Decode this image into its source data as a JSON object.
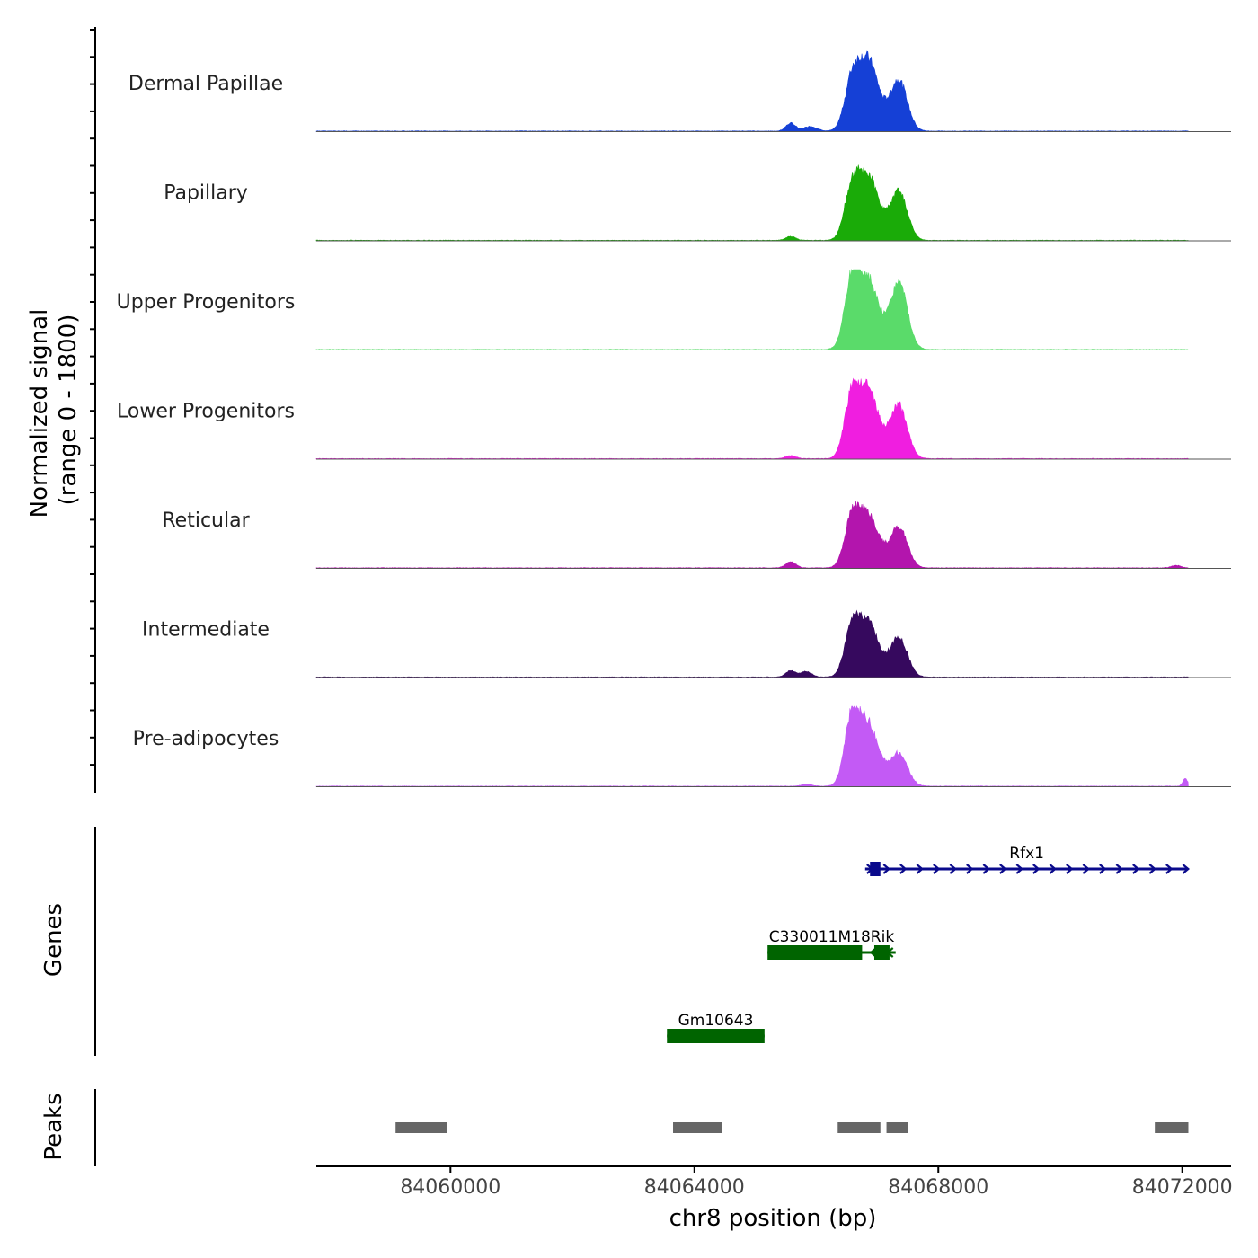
{
  "chart_data": {
    "type": "area",
    "title": "",
    "ylabel_line1": "Normalized signal",
    "ylabel_line2": "(range 0 - 1800)",
    "ylim": [
      0,
      1800
    ],
    "xlabel": "chr8 position (bp)",
    "xlim": [
      84057800,
      84072800
    ],
    "xticks": [
      84060000,
      84064000,
      84068000,
      84072000
    ],
    "xtick_labels": [
      "84060000",
      "84064000",
      "84068000",
      "84072000"
    ],
    "genes_label": "Genes",
    "peaks_label": "Peaks",
    "series": [
      {
        "name": "Dermal Papillae",
        "color": "#1540d6",
        "peaks": [
          {
            "c": 84066580,
            "w": 120,
            "h": 0.55
          },
          {
            "c": 84066850,
            "w": 170,
            "h": 0.9
          },
          {
            "c": 84067350,
            "w": 140,
            "h": 0.65
          },
          {
            "c": 84065580,
            "w": 80,
            "h": 0.1
          },
          {
            "c": 84065900,
            "w": 110,
            "h": 0.06
          }
        ]
      },
      {
        "name": "Papillary",
        "color": "#1aab08",
        "peaks": [
          {
            "c": 84066580,
            "w": 120,
            "h": 0.58
          },
          {
            "c": 84066850,
            "w": 170,
            "h": 0.82
          },
          {
            "c": 84067350,
            "w": 140,
            "h": 0.62
          },
          {
            "c": 84065580,
            "w": 80,
            "h": 0.05
          }
        ]
      },
      {
        "name": "Upper Progenitors",
        "color": "#5adb6a",
        "peaks": [
          {
            "c": 84066580,
            "w": 120,
            "h": 0.78
          },
          {
            "c": 84066850,
            "w": 170,
            "h": 0.88
          },
          {
            "c": 84067350,
            "w": 140,
            "h": 0.85
          }
        ]
      },
      {
        "name": "Lower Progenitors",
        "color": "#f01ee0",
        "peaks": [
          {
            "c": 84066580,
            "w": 120,
            "h": 0.7
          },
          {
            "c": 84066850,
            "w": 170,
            "h": 0.86
          },
          {
            "c": 84067350,
            "w": 140,
            "h": 0.68
          },
          {
            "c": 84065580,
            "w": 80,
            "h": 0.04
          }
        ]
      },
      {
        "name": "Reticular",
        "color": "#b315ad",
        "peaks": [
          {
            "c": 84066580,
            "w": 120,
            "h": 0.55
          },
          {
            "c": 84066850,
            "w": 170,
            "h": 0.68
          },
          {
            "c": 84067350,
            "w": 140,
            "h": 0.52
          },
          {
            "c": 84065580,
            "w": 80,
            "h": 0.08
          },
          {
            "c": 84071900,
            "w": 80,
            "h": 0.03
          }
        ]
      },
      {
        "name": "Intermediate",
        "color": "#36095e",
        "peaks": [
          {
            "c": 84066580,
            "w": 120,
            "h": 0.55
          },
          {
            "c": 84066850,
            "w": 170,
            "h": 0.68
          },
          {
            "c": 84067350,
            "w": 140,
            "h": 0.5
          },
          {
            "c": 84065580,
            "w": 80,
            "h": 0.08
          },
          {
            "c": 84065830,
            "w": 90,
            "h": 0.07
          }
        ]
      },
      {
        "name": "Pre-adipocytes",
        "color": "#c35af5",
        "peaks": [
          {
            "c": 84066580,
            "w": 120,
            "h": 0.78
          },
          {
            "c": 84066850,
            "w": 170,
            "h": 0.78
          },
          {
            "c": 84067350,
            "w": 140,
            "h": 0.42
          },
          {
            "c": 84065850,
            "w": 80,
            "h": 0.03
          },
          {
            "c": 84072050,
            "w": 40,
            "h": 0.1
          }
        ]
      }
    ],
    "genes": [
      {
        "name": "Rfx1",
        "start": 84066800,
        "end": 84072100,
        "strand": "+",
        "row": 0,
        "color": "#0a0a8c",
        "exons": [
          {
            "start": 84066880,
            "end": 84067050
          }
        ]
      },
      {
        "name": "C330011M18Rik",
        "start": 84065200,
        "end": 84067300,
        "strand": "-",
        "row": 1,
        "color": "#006400",
        "exons": [
          {
            "start": 84065200,
            "end": 84066750
          },
          {
            "start": 84066950,
            "end": 84067200
          }
        ]
      },
      {
        "name": "Gm10643",
        "start": 84063550,
        "end": 84065150,
        "strand": "-",
        "row": 2,
        "color": "#006400",
        "exons": [
          {
            "start": 84063550,
            "end": 84065150
          }
        ]
      }
    ],
    "peak_regions": [
      {
        "start": 84059100,
        "end": 84059950
      },
      {
        "start": 84063650,
        "end": 84064450
      },
      {
        "start": 84066350,
        "end": 84067050
      },
      {
        "start": 84067150,
        "end": 84067500
      },
      {
        "start": 84071550,
        "end": 84072100
      }
    ]
  }
}
